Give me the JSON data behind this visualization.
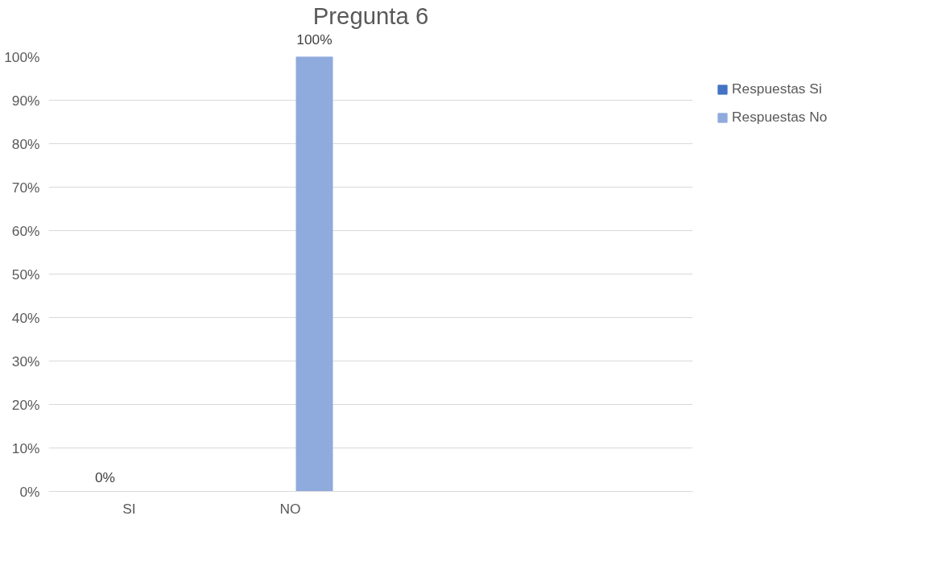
{
  "chart_data": {
    "type": "bar",
    "title": "Pregunta 6",
    "categories": [
      "SI",
      "NO",
      null,
      null
    ],
    "series": [
      {
        "name": "Respuestas Si",
        "color": "#4472c4",
        "values": [
          0,
          null,
          null,
          null
        ],
        "value_labels": [
          "0%",
          null,
          null,
          null
        ]
      },
      {
        "name": "Respuestas No",
        "color": "#8faadc",
        "values": [
          null,
          100,
          null,
          null
        ],
        "value_labels": [
          null,
          "100%",
          null,
          null
        ]
      }
    ],
    "ylim": [
      0,
      100
    ],
    "yticks": [
      {
        "value": 0,
        "label": "0%"
      },
      {
        "value": 10,
        "label": "10%"
      },
      {
        "value": 20,
        "label": "20%"
      },
      {
        "value": 30,
        "label": "30%"
      },
      {
        "value": 40,
        "label": "40%"
      },
      {
        "value": 50,
        "label": "50%"
      },
      {
        "value": 60,
        "label": "60%"
      },
      {
        "value": 70,
        "label": "70%"
      },
      {
        "value": 80,
        "label": "80%"
      },
      {
        "value": 90,
        "label": "90%"
      },
      {
        "value": 100,
        "label": "100%"
      }
    ],
    "grid": "y",
    "legend": "right"
  }
}
